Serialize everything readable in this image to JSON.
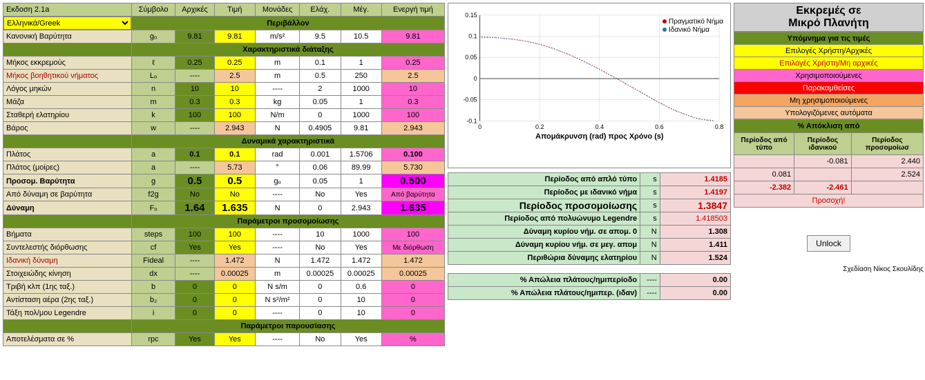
{
  "version": "Εκδοση 2.1a",
  "language": "Ελληνικά/Greek",
  "columns": {
    "c1": "Σύμβολο",
    "c2": "Αρχικές",
    "c3": "Τιμή",
    "c4": "Μονάδες",
    "c5": "Ελάχ.",
    "c6": "Μέγ.",
    "c7": "Ενεργή τιμή"
  },
  "sections": {
    "env": "Περιβάλλον",
    "arr": "Χαρακτηριστικά διάταξης",
    "dyn": "Δυναμικά χαρακτηριστικά",
    "sim": "Παράμετροι προσομοίωσης",
    "pres": "Παράμετροι παρουσίασης"
  },
  "rows": {
    "gravity": {
      "label": "Κανονική Βαρύτητα",
      "sym": "gₒ",
      "init": "9.81",
      "val": "9.81",
      "unit": "m/s²",
      "min": "9.5",
      "max": "10.5",
      "act": "9.81"
    },
    "length": {
      "label": "Μήκος εκκρεμούς",
      "sym": "ℓ",
      "init": "0.25",
      "val": "0.25",
      "unit": "m",
      "min": "0.1",
      "max": "1",
      "act": "0.25"
    },
    "aux": {
      "label": "Μήκος βοηθητικού νήματος",
      "sym": "Lₒ",
      "init": "----",
      "val": "2.5",
      "unit": "m",
      "min": "0.5",
      "max": "250",
      "act": "2.5"
    },
    "ratio": {
      "label": "Λόγος μηκών",
      "sym": "n",
      "init": "10",
      "val": "10",
      "unit": "----",
      "min": "2",
      "max": "1000",
      "act": "10"
    },
    "mass": {
      "label": "Μάζα",
      "sym": "m",
      "init": "0.3",
      "val": "0.3",
      "unit": "kg",
      "min": "0.05",
      "max": "1",
      "act": "0.3"
    },
    "spring": {
      "label": "Σταθερή ελατηρίου",
      "sym": "k",
      "init": "100",
      "val": "100",
      "unit": "N/m",
      "min": "0",
      "max": "1000",
      "act": "100"
    },
    "weight": {
      "label": "Βάρος",
      "sym": "w",
      "init": "----",
      "val": "2.943",
      "unit": "N",
      "min": "0.4905",
      "max": "9.81",
      "act": "2.943"
    },
    "amp": {
      "label": "Πλάτος",
      "sym": "a",
      "init": "0.1",
      "val": "0.1",
      "unit": "rad",
      "min": "0.001",
      "max": "1.5706",
      "act": "0.100"
    },
    "ampdeg": {
      "label": "Πλάτος (μοίρες)",
      "sym": "a",
      "init": "----",
      "val": "5.73",
      "unit": "°",
      "min": "0.06",
      "max": "89.99",
      "act": "5.730"
    },
    "simg": {
      "label": "Προσομ. Βαρύτητα",
      "sym": "g",
      "init": "0.5",
      "val": "0.5",
      "unit": "gₒ",
      "min": "0.05",
      "max": "1",
      "act": "0.500"
    },
    "f2g": {
      "label": "Από δύναμη σε βαρύτητα",
      "sym": "f2g",
      "init": "No",
      "val": "No",
      "unit": "----",
      "min": "No",
      "max": "Yes",
      "act": "Από βαρύτητα"
    },
    "force": {
      "label": "Δύναμη",
      "sym": "Fₒ",
      "init": "1.64",
      "val": "1.635",
      "unit": "N",
      "min": "0",
      "max": "2.943",
      "act": "1.635"
    },
    "steps": {
      "label": "Βήματα",
      "sym": "steps",
      "init": "100",
      "val": "100",
      "unit": "----",
      "min": "10",
      "max": "1000",
      "act": "100"
    },
    "cf": {
      "label": "Συντελεστής διόρθωσης",
      "sym": "cf",
      "init": "Yes",
      "val": "Yes",
      "unit": "----",
      "min": "No",
      "max": "Yes",
      "act": "Με διόρθωση"
    },
    "fideal": {
      "label": "Ιδανική δύναμη",
      "sym": "Fideal",
      "init": "----",
      "val": "1.472",
      "unit": "N",
      "min": "1.472",
      "max": "1.472",
      "act": "1.472"
    },
    "dx": {
      "label": "Στοιχειώδης κίνηση",
      "sym": "dx",
      "init": "----",
      "val": "0.00025",
      "unit": "m",
      "min": "0.00025",
      "max": "0.00025",
      "act": "0.00025"
    },
    "fric": {
      "label": "Τριβή κλπ (1ης ταξ.)",
      "sym": "b",
      "init": "0",
      "val": "0",
      "unit": "N s/m",
      "min": "0",
      "max": "0.6",
      "act": "0"
    },
    "air": {
      "label": "Αντίσταση αέρα (2ης ταξ.)",
      "sym": "b₂",
      "init": "0",
      "val": "0",
      "unit": "N s²/m²",
      "min": "0",
      "max": "10",
      "act": "0"
    },
    "legord": {
      "label": "Τάξη πολ/μου Legendre",
      "sym": "i",
      "init": "0",
      "val": "0",
      "unit": "----",
      "min": "0",
      "max": "10",
      "act": "0"
    },
    "rpc": {
      "label": "Αποτελέσματα σε %",
      "sym": "rpc",
      "init": "Yes",
      "val": "Yes",
      "unit": "----",
      "min": "No",
      "max": "Yes",
      "act": "%"
    }
  },
  "chart": {
    "title": "Απομάκρυνση (rad) προς Χρόνο (s)",
    "legend": {
      "real": "Πραγματικό Νήμα",
      "ideal": "Ιδανικό Νήμα"
    },
    "colors": {
      "real": "#c00000",
      "ideal": "#1f77b4",
      "grid": "#ccc",
      "axis": "#444"
    },
    "xmin": 0,
    "xmax": 0.8,
    "xtick": 0.2,
    "ymin": -0.1,
    "ymax": 0.15,
    "ytick": 0.05,
    "xticks": [
      "0",
      "0.2",
      "0.4",
      "0.6",
      "0.8"
    ],
    "yticks": [
      "-0.1",
      "-0.05",
      "0",
      "0.05",
      "0.1",
      "0.15"
    ],
    "series": [
      {
        "t": 0.0,
        "y": 0.098
      },
      {
        "t": 0.05,
        "y": 0.097
      },
      {
        "t": 0.1,
        "y": 0.094
      },
      {
        "t": 0.15,
        "y": 0.089
      },
      {
        "t": 0.2,
        "y": 0.081
      },
      {
        "t": 0.25,
        "y": 0.07
      },
      {
        "t": 0.3,
        "y": 0.056
      },
      {
        "t": 0.35,
        "y": 0.04
      },
      {
        "t": 0.4,
        "y": 0.022
      },
      {
        "t": 0.45,
        "y": 0.003
      },
      {
        "t": 0.5,
        "y": -0.017
      },
      {
        "t": 0.55,
        "y": -0.037
      },
      {
        "t": 0.6,
        "y": -0.057
      },
      {
        "t": 0.65,
        "y": -0.075
      },
      {
        "t": 0.7,
        "y": -0.088
      },
      {
        "t": 0.72,
        "y": -0.093
      },
      {
        "t": 0.74,
        "y": -0.096
      },
      {
        "t": 0.76,
        "y": -0.098
      },
      {
        "t": 0.78,
        "y": -0.099
      }
    ]
  },
  "results": {
    "r1": {
      "label": "Περίοδος από απλό τύπο",
      "unit": "s",
      "val": "1.4185"
    },
    "r2": {
      "label": "Περίοδος με ιδανικό νήμα",
      "unit": "s",
      "val": "1.4197"
    },
    "r3": {
      "label": "Περίοδος προσομοίωσης",
      "unit": "s",
      "val": "1.3847"
    },
    "r4": {
      "label": "Περίοδος από πολυώνυμο Legendre",
      "unit": "s",
      "val": "1.418503"
    },
    "r5": {
      "label": "Δύναμη κυρίου νήμ. σε απομ. 0",
      "unit": "N",
      "val": "1.308"
    },
    "r6": {
      "label": "Δύναμη κυρίου νήμ. σε μεγ. απομ",
      "unit": "N",
      "val": "1.411"
    },
    "r7": {
      "label": "Περιθώρια δύναμης ελατηρίου",
      "unit": "N",
      "val": "1.524"
    },
    "loss1": {
      "label": "% Απώλεια πλάτους/ημιπερίοδο",
      "unit": "----",
      "val": "0.00"
    },
    "loss2": {
      "label": "% Απώλεια πλάτους/ημιπερ. (ιδαν)",
      "unit": "----",
      "val": "0.00"
    }
  },
  "rightpanel": {
    "title1": "Εκκρεμές σε",
    "title2": "Μικρό Πλανήτη",
    "legendhdr": "Υπόμνημα για τις τιμές",
    "l1": "Επιλογές Χρήστη/Αρχικές",
    "l2": "Επιλογές Χρήστη/Μη αρχικές",
    "l3": "Χρησιμοποιούμενες",
    "l4": "Παρακαμθείσες",
    "l5": "Μη χρησιμοποιούμενες",
    "l6": "Υπολογιζόμενες αυτόματα",
    "devhdr": "% Απόκλιση από",
    "devcols": {
      "c1": "Περίοδος από τύπο",
      "c2": "Περίοδος ιδανικού",
      "c3": "Περίοδος προσομοίωσ"
    },
    "dev": [
      {
        "c1": "",
        "c2": "-0.081",
        "c3": "2.440"
      },
      {
        "c1": "0.081",
        "c2": "",
        "c3": "2.524"
      },
      {
        "c1": "-2.382",
        "c2": "-2.461",
        "c3": ""
      }
    ],
    "warn": "Προσοχή!",
    "unlock": "Unlock",
    "credit": "Σχεδίαση Νίκος Σκουλίδης"
  }
}
